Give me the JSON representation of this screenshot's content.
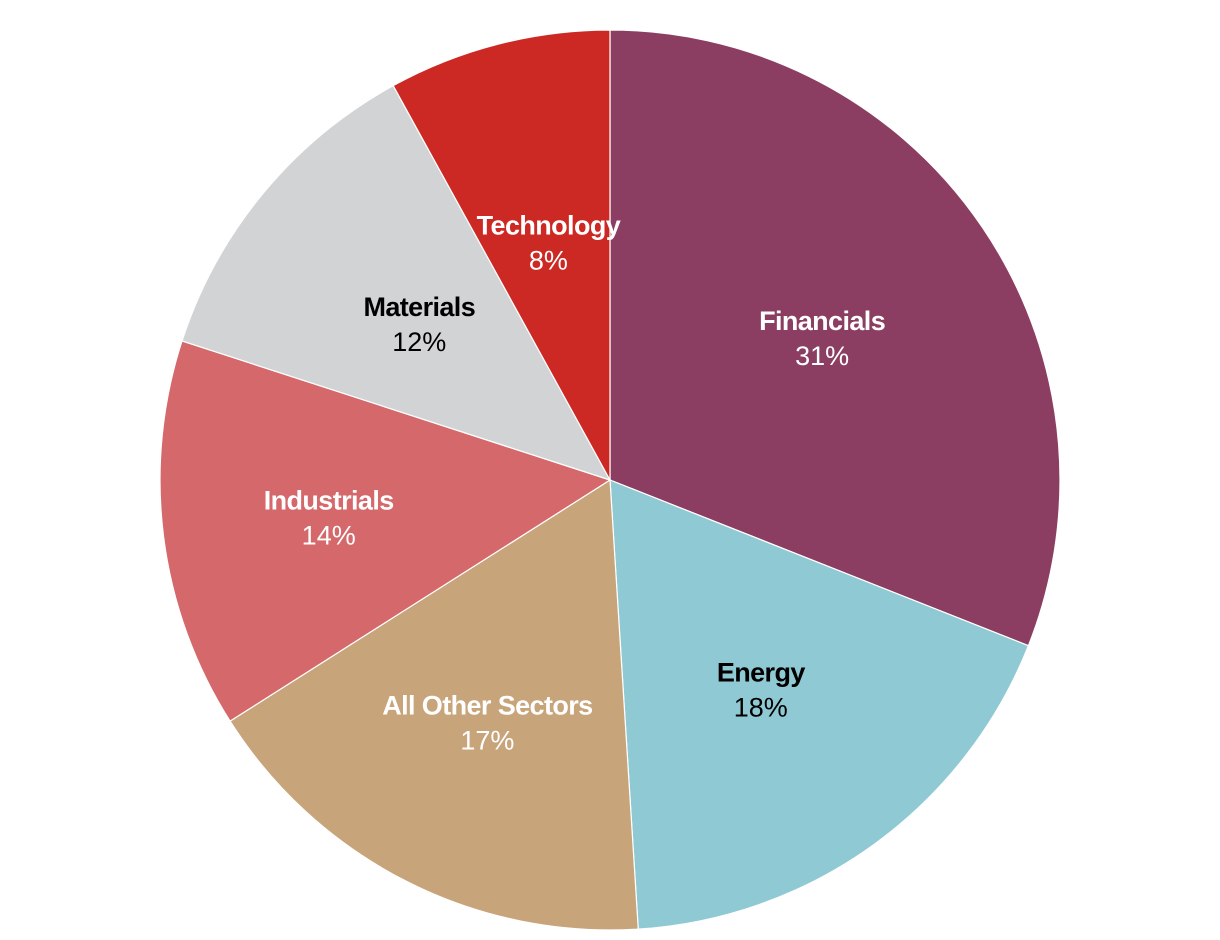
{
  "chart_data": {
    "type": "pie",
    "start_angle_deg": 0,
    "direction": "clockwise",
    "slices": [
      {
        "label": "Financials",
        "value_label": "31%",
        "value": 31,
        "color": "#8b3e61",
        "text_color": "#ffffff"
      },
      {
        "label": "Energy",
        "value_label": "18%",
        "value": 18,
        "color": "#8fc9d4",
        "text_color": "#000000"
      },
      {
        "label": "All Other Sectors",
        "value_label": "17%",
        "value": 17,
        "color": "#c7a47a",
        "text_color": "#ffffff"
      },
      {
        "label": "Industrials",
        "value_label": "14%",
        "value": 14,
        "color": "#d4686a",
        "text_color": "#ffffff"
      },
      {
        "label": "Materials",
        "value_label": "12%",
        "value": 12,
        "color": "#d2d3d5",
        "text_color": "#000000"
      },
      {
        "label": "Technology",
        "value_label": "8%",
        "value": 8,
        "color": "#cd2924",
        "text_color": "#ffffff"
      }
    ]
  }
}
